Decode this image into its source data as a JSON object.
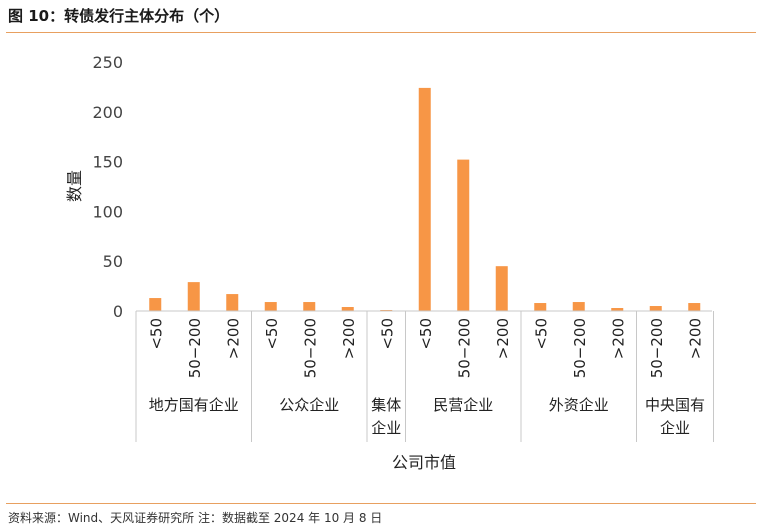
{
  "header": {
    "title": "图 10：转债发行主体分布（个）"
  },
  "footer": {
    "note": "资料来源：Wind、天风证券研究所 注：数据截至 2024 年 10 月 8 日"
  },
  "chart_data": {
    "type": "bar",
    "title": "",
    "xlabel": "公司市值",
    "ylabel": "数量",
    "ylim": [
      0,
      250
    ],
    "yticks": [
      0,
      50,
      100,
      150,
      200,
      250
    ],
    "grid": false,
    "bar_color": "#f79646",
    "groups": [
      {
        "name": "地方国有企业",
        "categories": [
          "<50",
          "50−200",
          ">200"
        ],
        "values": [
          13,
          29,
          17
        ]
      },
      {
        "name": "公众企业",
        "categories": [
          "<50",
          "50−200",
          ">200"
        ],
        "values": [
          9,
          9,
          4
        ]
      },
      {
        "name": "集体企业",
        "categories": [
          "<50"
        ],
        "values": [
          1
        ]
      },
      {
        "name": "民营企业",
        "categories": [
          "<50",
          "50−200",
          ">200"
        ],
        "values": [
          224,
          152,
          45
        ]
      },
      {
        "name": "外资企业",
        "categories": [
          "<50",
          "50−200",
          ">200"
        ],
        "values": [
          8,
          9,
          3
        ]
      },
      {
        "name": "中央国有企业",
        "categories": [
          "50−200",
          ">200"
        ],
        "values": [
          5,
          8
        ]
      }
    ]
  }
}
